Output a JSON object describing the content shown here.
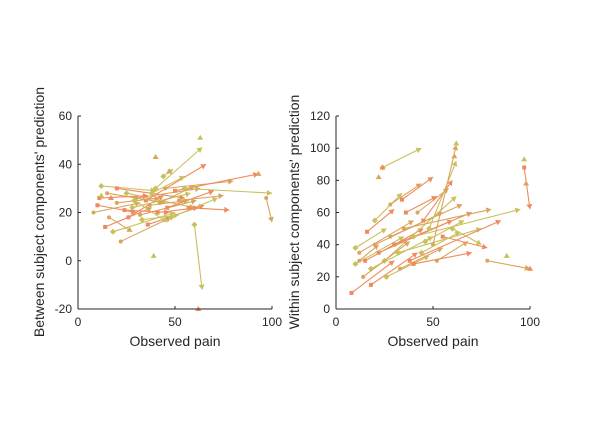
{
  "colors": {
    "orange": "#ee8a5e",
    "yellow": "#c8c05a",
    "mid": "#dba35c",
    "axis": "#262626"
  },
  "chart_data": [
    {
      "type": "scatter",
      "title": "",
      "xlabel": "Observed pain",
      "ylabel": "Between subject components' prediction",
      "xlim": [
        0,
        100
      ],
      "ylim": [
        -20,
        60
      ],
      "xticks": [
        "0",
        "50",
        "100"
      ],
      "yticks": [
        "-20",
        "0",
        "20",
        "40",
        "60"
      ],
      "grid": false,
      "legend": "none",
      "segments": [
        {
          "x": [
            10,
            30
          ],
          "y": [
            23,
            20
          ]
        },
        {
          "x": [
            12,
            40
          ],
          "y": [
            31,
            29
          ]
        },
        {
          "x": [
            15,
            45
          ],
          "y": [
            28,
            24
          ]
        },
        {
          "x": [
            20,
            55
          ],
          "y": [
            30,
            26
          ]
        },
        {
          "x": [
            25,
            60
          ],
          "y": [
            28,
            22
          ]
        },
        {
          "x": [
            30,
            63
          ],
          "y": [
            26,
            30
          ]
        },
        {
          "x": [
            35,
            66
          ],
          "y": [
            25,
            40
          ]
        },
        {
          "x": [
            40,
            64
          ],
          "y": [
            30,
            47
          ]
        },
        {
          "x": [
            45,
            80
          ],
          "y": [
            30,
            33
          ]
        },
        {
          "x": [
            50,
            93
          ],
          "y": [
            29,
            36
          ]
        },
        {
          "x": [
            55,
            100
          ],
          "y": [
            30,
            28
          ]
        },
        {
          "x": [
            8,
            32
          ],
          "y": [
            20,
            24
          ]
        },
        {
          "x": [
            14,
            38
          ],
          "y": [
            14,
            22
          ]
        },
        {
          "x": [
            18,
            50
          ],
          "y": [
            12,
            20
          ]
        },
        {
          "x": [
            22,
            48
          ],
          "y": [
            8,
            18
          ]
        },
        {
          "x": [
            26,
            44
          ],
          "y": [
            18,
            27
          ]
        },
        {
          "x": [
            28,
            58
          ],
          "y": [
            22,
            28
          ]
        },
        {
          "x": [
            32,
            61
          ],
          "y": [
            19,
            25
          ]
        },
        {
          "x": [
            36,
            65
          ],
          "y": [
            15,
            23
          ]
        },
        {
          "x": [
            38,
            55
          ],
          "y": [
            28,
            35
          ]
        },
        {
          "x": [
            42,
            60
          ],
          "y": [
            24,
            31
          ]
        },
        {
          "x": [
            46,
            70
          ],
          "y": [
            22,
            29
          ]
        },
        {
          "x": [
            48,
            72
          ],
          "y": [
            18,
            26
          ]
        },
        {
          "x": [
            52,
            75
          ],
          "y": [
            25,
            27
          ]
        },
        {
          "x": [
            57,
            78
          ],
          "y": [
            22,
            21
          ]
        },
        {
          "x": [
            60,
            64
          ],
          "y": [
            15,
            -12
          ]
        },
        {
          "x": [
            20,
            42
          ],
          "y": [
            24,
            26
          ]
        },
        {
          "x": [
            24,
            47
          ],
          "y": [
            21,
            20
          ]
        },
        {
          "x": [
            33,
            52
          ],
          "y": [
            17,
            19
          ]
        },
        {
          "x": [
            37,
            57
          ],
          "y": [
            23,
            25
          ]
        },
        {
          "x": [
            41,
            62
          ],
          "y": [
            20,
            22
          ]
        },
        {
          "x": [
            44,
            49
          ],
          "y": [
            35,
            38
          ]
        },
        {
          "x": [
            16,
            28
          ],
          "y": [
            18,
            12
          ]
        },
        {
          "x": [
            11,
            36
          ],
          "y": [
            26,
            27
          ]
        },
        {
          "x": [
            29,
            46
          ],
          "y": [
            25,
            16
          ]
        },
        {
          "x": [
            97,
            100
          ],
          "y": [
            26,
            16
          ]
        }
      ],
      "points": [
        {
          "x": 63,
          "y": 51
        },
        {
          "x": 40,
          "y": 43
        },
        {
          "x": 62,
          "y": -20
        },
        {
          "x": 39,
          "y": 2
        },
        {
          "x": 47,
          "y": 37
        },
        {
          "x": 17,
          "y": 26
        },
        {
          "x": 12,
          "y": 27
        },
        {
          "x": 93,
          "y": 36
        }
      ]
    },
    {
      "type": "scatter",
      "title": "",
      "xlabel": "Observed pain",
      "ylabel": "Within subject components' prediction",
      "xlim": [
        0,
        100
      ],
      "ylim": [
        0,
        120
      ],
      "xticks": [
        "0",
        "50",
        "100"
      ],
      "yticks": [
        "0",
        "20",
        "40",
        "60",
        "80",
        "100",
        "120"
      ],
      "grid": false,
      "legend": "none",
      "segments": [
        {
          "x": [
            8,
            30
          ],
          "y": [
            10,
            30
          ]
        },
        {
          "x": [
            10,
            35
          ],
          "y": [
            28,
            45
          ]
        },
        {
          "x": [
            12,
            40
          ],
          "y": [
            35,
            55
          ]
        },
        {
          "x": [
            15,
            45
          ],
          "y": [
            30,
            50
          ]
        },
        {
          "x": [
            18,
            50
          ],
          "y": [
            25,
            45
          ]
        },
        {
          "x": [
            20,
            55
          ],
          "y": [
            40,
            60
          ]
        },
        {
          "x": [
            22,
            60
          ],
          "y": [
            35,
            55
          ]
        },
        {
          "x": [
            25,
            62
          ],
          "y": [
            30,
            70
          ]
        },
        {
          "x": [
            28,
            65
          ],
          "y": [
            45,
            65
          ]
        },
        {
          "x": [
            30,
            70
          ],
          "y": [
            40,
            60
          ]
        },
        {
          "x": [
            32,
            75
          ],
          "y": [
            35,
            50
          ]
        },
        {
          "x": [
            35,
            80
          ],
          "y": [
            50,
            62
          ]
        },
        {
          "x": [
            38,
            85
          ],
          "y": [
            30,
            55
          ]
        },
        {
          "x": [
            40,
            95
          ],
          "y": [
            45,
            62
          ]
        },
        {
          "x": [
            42,
            58
          ],
          "y": [
            60,
            75
          ]
        },
        {
          "x": [
            45,
            60
          ],
          "y": [
            55,
            80
          ]
        },
        {
          "x": [
            48,
            62
          ],
          "y": [
            50,
            92
          ]
        },
        {
          "x": [
            50,
            62
          ],
          "y": [
            40,
            102
          ]
        },
        {
          "x": [
            55,
            78
          ],
          "y": [
            45,
            38
          ]
        },
        {
          "x": [
            60,
            75
          ],
          "y": [
            50,
            40
          ]
        },
        {
          "x": [
            78,
            100
          ],
          "y": [
            30,
            25
          ]
        },
        {
          "x": [
            97,
            100
          ],
          "y": [
            88,
            62
          ]
        },
        {
          "x": [
            24,
            44
          ],
          "y": [
            88,
            100
          ]
        },
        {
          "x": [
            14,
            38
          ],
          "y": [
            20,
            42
          ]
        },
        {
          "x": [
            18,
            42
          ],
          "y": [
            15,
            35
          ]
        },
        {
          "x": [
            26,
            48
          ],
          "y": [
            20,
            33
          ]
        },
        {
          "x": [
            33,
            55
          ],
          "y": [
            25,
            38
          ]
        },
        {
          "x": [
            36,
            52
          ],
          "y": [
            60,
            70
          ]
        },
        {
          "x": [
            44,
            64
          ],
          "y": [
            35,
            48
          ]
        },
        {
          "x": [
            52,
            68
          ],
          "y": [
            30,
            42
          ]
        },
        {
          "x": [
            16,
            30
          ],
          "y": [
            48,
            62
          ]
        },
        {
          "x": [
            20,
            34
          ],
          "y": [
            55,
            72
          ]
        },
        {
          "x": [
            28,
            44
          ],
          "y": [
            65,
            78
          ]
        },
        {
          "x": [
            34,
            50
          ],
          "y": [
            68,
            82
          ]
        },
        {
          "x": [
            10,
            26
          ],
          "y": [
            38,
            50
          ]
        },
        {
          "x": [
            12,
            22
          ],
          "y": [
            30,
            40
          ]
        },
        {
          "x": [
            40,
            70
          ],
          "y": [
            28,
            35
          ]
        },
        {
          "x": [
            46,
            66
          ],
          "y": [
            42,
            55
          ]
        }
      ],
      "points": [
        {
          "x": 97,
          "y": 93
        },
        {
          "x": 98,
          "y": 78
        },
        {
          "x": 100,
          "y": 25
        },
        {
          "x": 88,
          "y": 33
        },
        {
          "x": 22,
          "y": 82
        },
        {
          "x": 24,
          "y": 88
        },
        {
          "x": 62,
          "y": 103
        },
        {
          "x": 61,
          "y": 95
        }
      ]
    }
  ]
}
